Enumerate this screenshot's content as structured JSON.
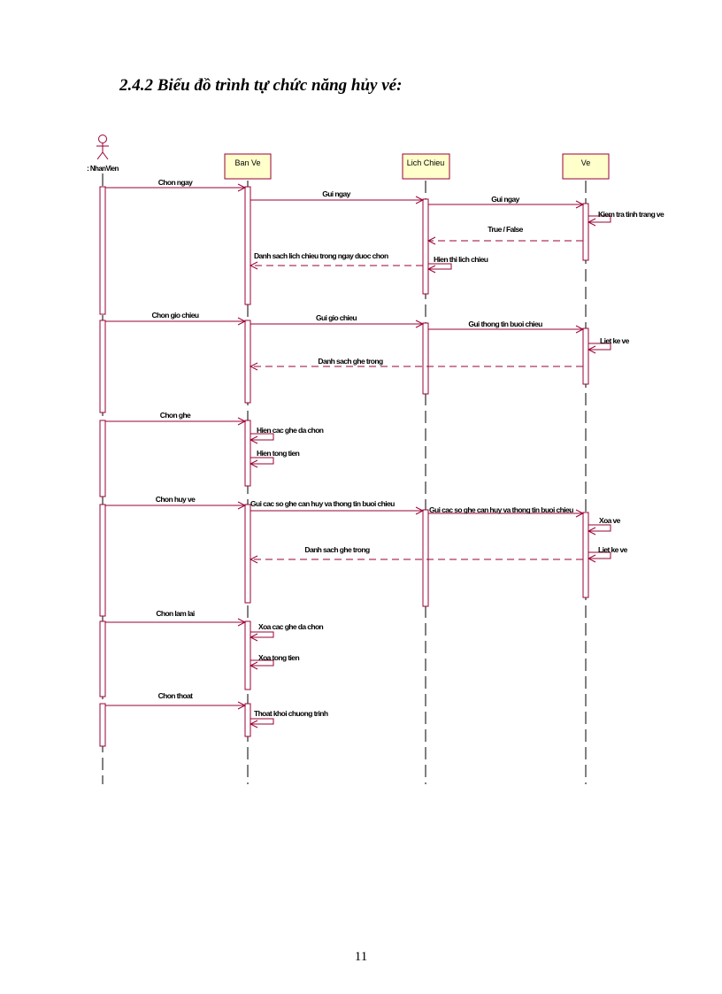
{
  "heading": "2.4.2 Biểu đồ trình tự chức năng hủy vé:",
  "page_number": "11",
  "colors": {
    "line": "#990033",
    "object_fill": "#ffffcc",
    "object_border": "#990033"
  },
  "actor": {
    "name": ": NhanVien"
  },
  "objects": [
    {
      "id": "banve",
      "name": "Ban Ve"
    },
    {
      "id": "lichchieu",
      "name": "Lich Chieu"
    },
    {
      "id": "ve",
      "name": "Ve"
    }
  ],
  "messages": [
    {
      "text": "Chon ngay",
      "from": "actor",
      "to": "banve",
      "kind": "call"
    },
    {
      "text": "Gui ngay",
      "from": "banve",
      "to": "lichchieu",
      "kind": "call"
    },
    {
      "text": "Gui ngay",
      "from": "lichchieu",
      "to": "ve",
      "kind": "call"
    },
    {
      "text": "Kiem tra tinh trang ve",
      "from": "ve",
      "to": "ve",
      "kind": "self"
    },
    {
      "text": "True / False",
      "from": "ve",
      "to": "lichchieu",
      "kind": "return"
    },
    {
      "text": "Hien thi lich chieu",
      "from": "lichchieu",
      "to": "lichchieu",
      "kind": "self"
    },
    {
      "text": "Danh sach lich chieu trong ngay duoc chon",
      "from": "lichchieu",
      "to": "banve",
      "kind": "return"
    },
    {
      "text": "Chon gio chieu",
      "from": "actor",
      "to": "banve",
      "kind": "call"
    },
    {
      "text": "Gui gio chieu",
      "from": "banve",
      "to": "lichchieu",
      "kind": "call"
    },
    {
      "text": "Gui thong tin buoi chieu",
      "from": "lichchieu",
      "to": "ve",
      "kind": "call"
    },
    {
      "text": "Liet ke ve",
      "from": "ve",
      "to": "ve",
      "kind": "self"
    },
    {
      "text": "Danh sach ghe trong",
      "from": "ve",
      "to": "banve",
      "kind": "return"
    },
    {
      "text": "Chon ghe",
      "from": "actor",
      "to": "banve",
      "kind": "call"
    },
    {
      "text": "Hien cac ghe da chon",
      "from": "banve",
      "to": "banve",
      "kind": "self"
    },
    {
      "text": "Hien tong tien",
      "from": "banve",
      "to": "banve",
      "kind": "self"
    },
    {
      "text": "Chon huy ve",
      "from": "actor",
      "to": "banve",
      "kind": "call"
    },
    {
      "text": "Gui cac so ghe can huy va thong tin buoi chieu",
      "from": "banve",
      "to": "lichchieu",
      "kind": "call"
    },
    {
      "text": "Gui cac so ghe can huy va thong tin buoi chieu",
      "from": "lichchieu",
      "to": "ve",
      "kind": "call"
    },
    {
      "text": "Xoa ve",
      "from": "ve",
      "to": "ve",
      "kind": "self"
    },
    {
      "text": "Liet ke ve",
      "from": "ve",
      "to": "ve",
      "kind": "self"
    },
    {
      "text": "Danh sach ghe trong",
      "from": "ve",
      "to": "banve",
      "kind": "return"
    },
    {
      "text": "Chon lam lai",
      "from": "actor",
      "to": "banve",
      "kind": "call"
    },
    {
      "text": "Xoa cac ghe da chon",
      "from": "banve",
      "to": "banve",
      "kind": "self"
    },
    {
      "text": "Xoa tong tien",
      "from": "banve",
      "to": "banve",
      "kind": "self"
    },
    {
      "text": "Chon thoat",
      "from": "actor",
      "to": "banve",
      "kind": "call"
    },
    {
      "text": "Thoat khoi chuong trinh",
      "from": "banve",
      "to": "banve",
      "kind": "self"
    }
  ]
}
